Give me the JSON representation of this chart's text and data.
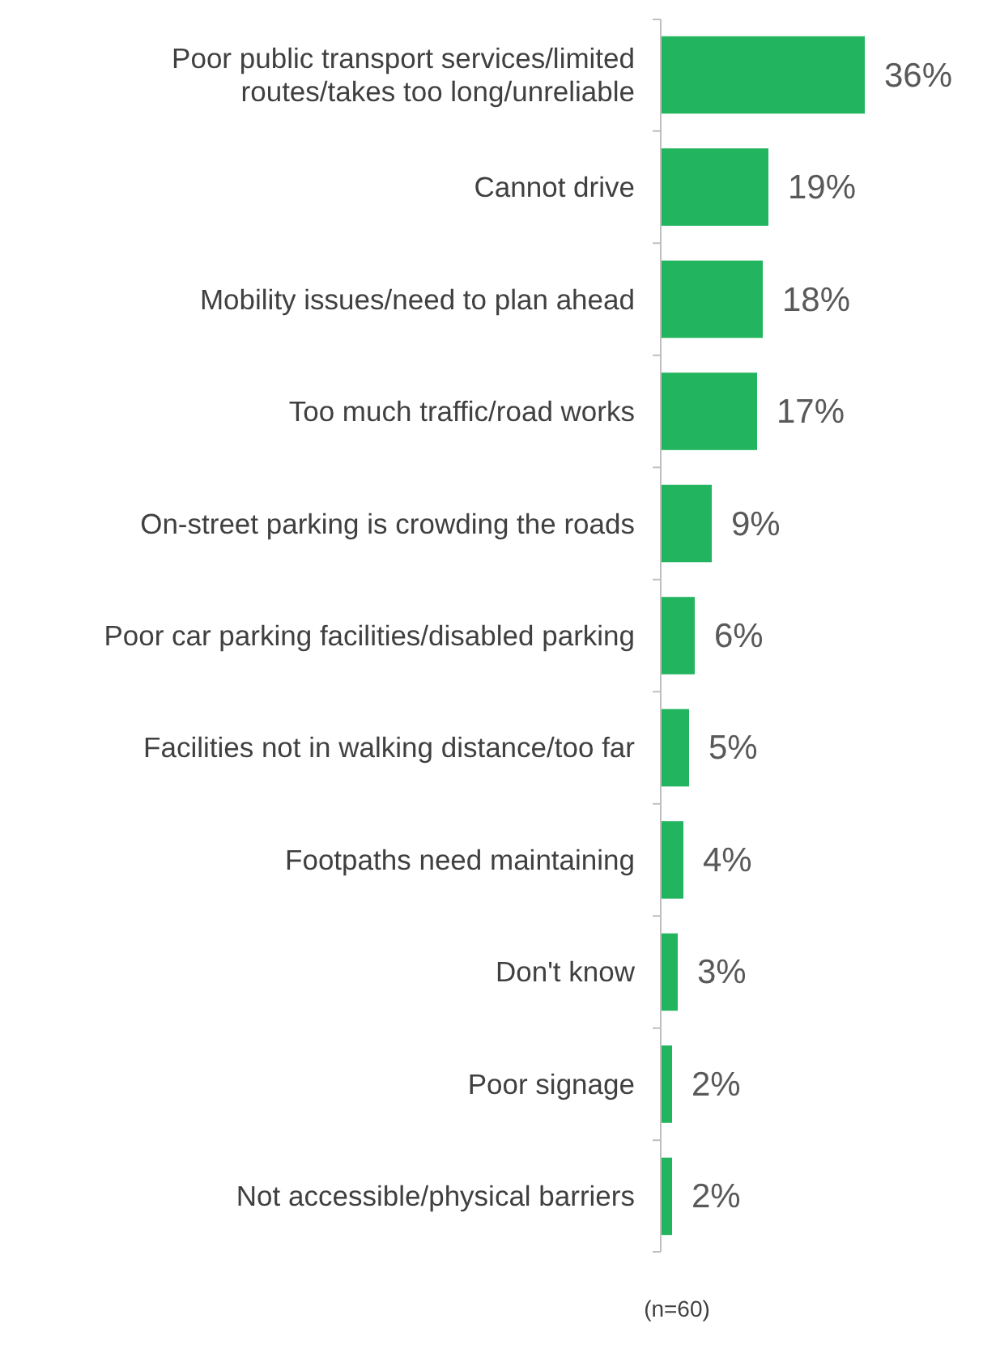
{
  "chart_data": {
    "type": "bar",
    "orientation": "horizontal",
    "categories": [
      "Poor public transport services/limited routes/takes too long/unreliable",
      "Cannot drive",
      "Mobility issues/need to plan ahead",
      "Too much traffic/road works",
      "On-street parking is crowding the roads",
      "Poor car parking facilities/disabled parking",
      "Facilities not in walking distance/too far",
      "Footpaths need maintaining",
      "Don't know",
      "Poor signage",
      "Not accessible/physical barriers"
    ],
    "values": [
      36,
      19,
      18,
      17,
      9,
      6,
      5,
      4,
      3,
      2,
      2
    ],
    "value_labels": [
      "36%",
      "19%",
      "18%",
      "17%",
      "9%",
      "6%",
      "5%",
      "4%",
      "3%",
      "2%",
      "2%"
    ],
    "color": "#22b45e",
    "annotations": [
      "(n=60)"
    ]
  }
}
